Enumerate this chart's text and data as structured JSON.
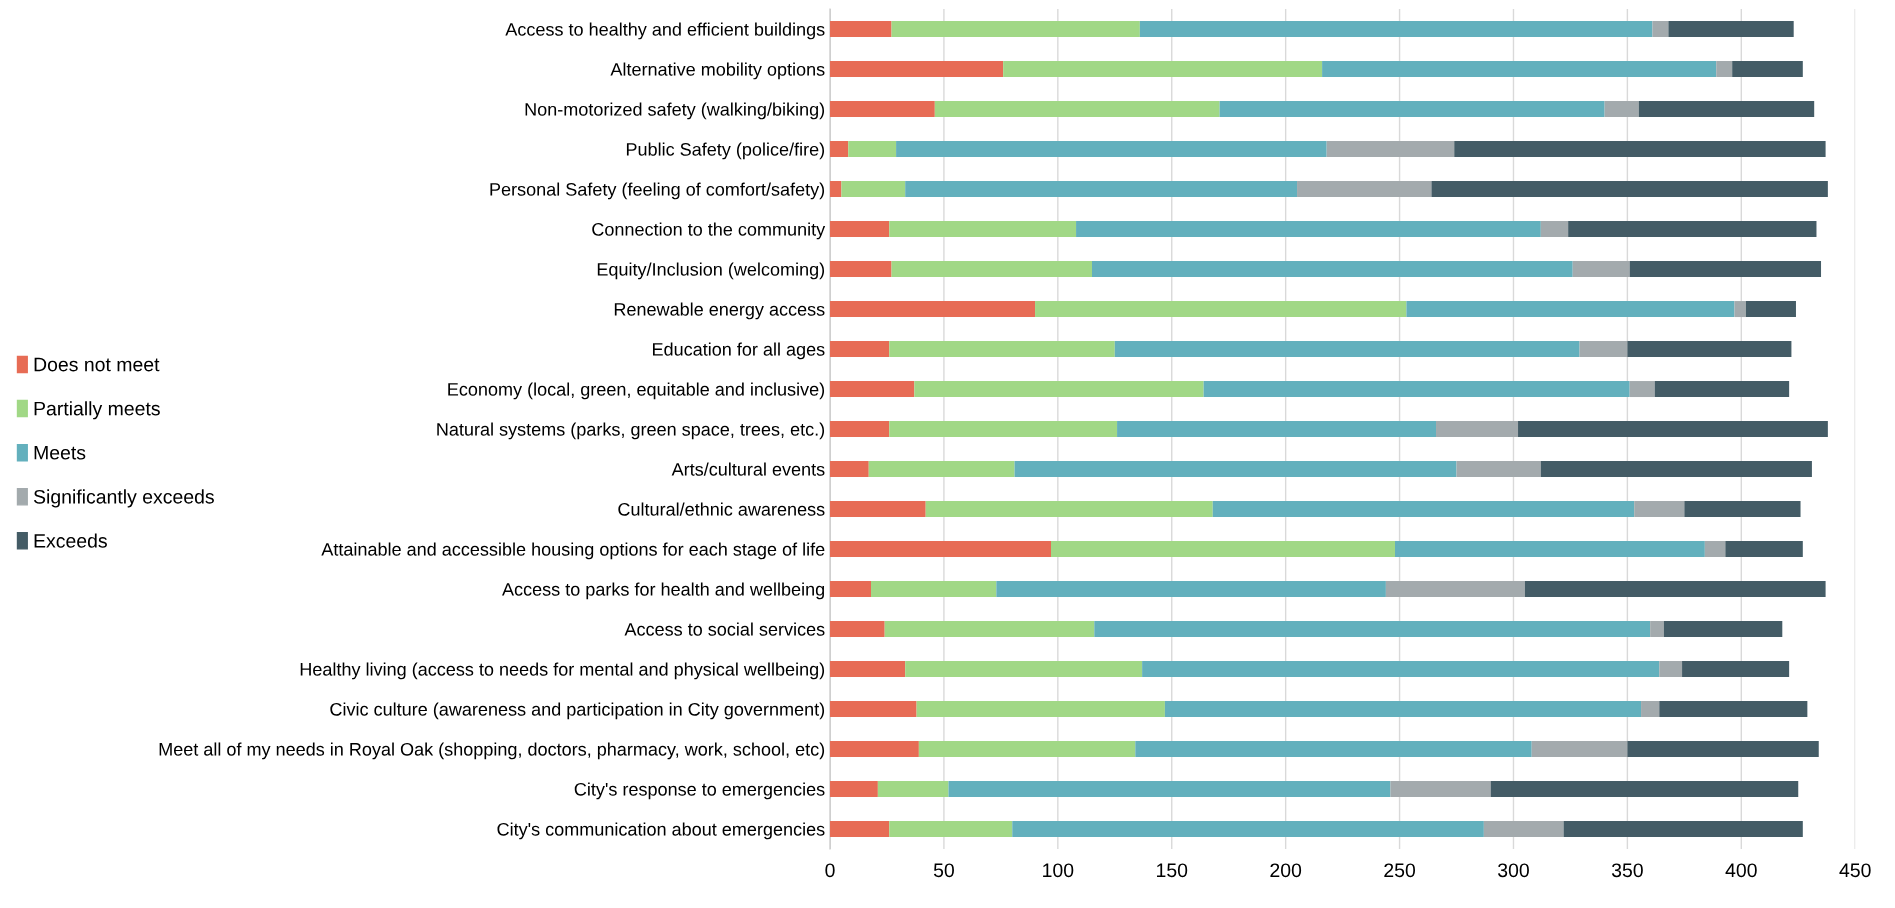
{
  "chart_data": {
    "type": "bar",
    "orientation": "horizontal",
    "stacked": true,
    "categories": [
      "Access to healthy and efficient buildings",
      "Alternative mobility options",
      "Non-motorized safety (walking/biking)",
      "Public Safety (police/fire)",
      "Personal Safety (feeling of comfort/safety)",
      "Connection to the community",
      "Equity/Inclusion (welcoming)",
      "Renewable energy access",
      "Education for all ages",
      "Economy (local, green, equitable and inclusive)",
      "Natural systems (parks, green space, trees, etc.)",
      "Arts/cultural events",
      "Cultural/ethnic awareness",
      "Attainable and accessible housing options for each stage of life",
      "Access to parks for health and wellbeing",
      "Access to social services",
      "Healthy living (access to needs for mental and physical wellbeing)",
      "Civic culture (awareness and participation in City government)",
      "Meet all of my needs in Royal Oak (shopping, doctors, pharmacy, work, school, etc)",
      "City's response to emergencies",
      "City's communication about emergencies"
    ],
    "series": [
      {
        "name": "Does not meet",
        "color": "#e76c55",
        "values": [
          27,
          76,
          46,
          8,
          5,
          26,
          27,
          90,
          26,
          37,
          26,
          17,
          42,
          97,
          18,
          24,
          33,
          38,
          39,
          21,
          26
        ]
      },
      {
        "name": "Partially meets",
        "color": "#a1d886",
        "values": [
          109,
          140,
          125,
          21,
          28,
          82,
          88,
          163,
          99,
          127,
          100,
          64,
          126,
          151,
          55,
          92,
          104,
          109,
          95,
          31,
          54
        ]
      },
      {
        "name": "Meets",
        "color": "#63b0bd",
        "values": [
          225,
          173,
          169,
          189,
          172,
          204,
          211,
          144,
          204,
          187,
          140,
          194,
          185,
          136,
          171,
          244,
          227,
          209,
          174,
          194,
          207
        ]
      },
      {
        "name": "Significantly exceeds",
        "color": "#a3aaad",
        "values": [
          7,
          7,
          15,
          56,
          59,
          12,
          25,
          5,
          21,
          11,
          36,
          37,
          22,
          9,
          61,
          6,
          10,
          8,
          42,
          44,
          35
        ]
      },
      {
        "name": "Exceeds",
        "color": "#445c66",
        "values": [
          55,
          31,
          77,
          163,
          174,
          109,
          84,
          22,
          72,
          59,
          136,
          119,
          51,
          34,
          132,
          52,
          47,
          65,
          84,
          135,
          105
        ]
      }
    ],
    "xlim": [
      0,
      450
    ],
    "xticks": [
      0,
      50,
      100,
      150,
      200,
      250,
      300,
      350,
      400,
      450
    ],
    "grid": "x",
    "legend": "left"
  }
}
